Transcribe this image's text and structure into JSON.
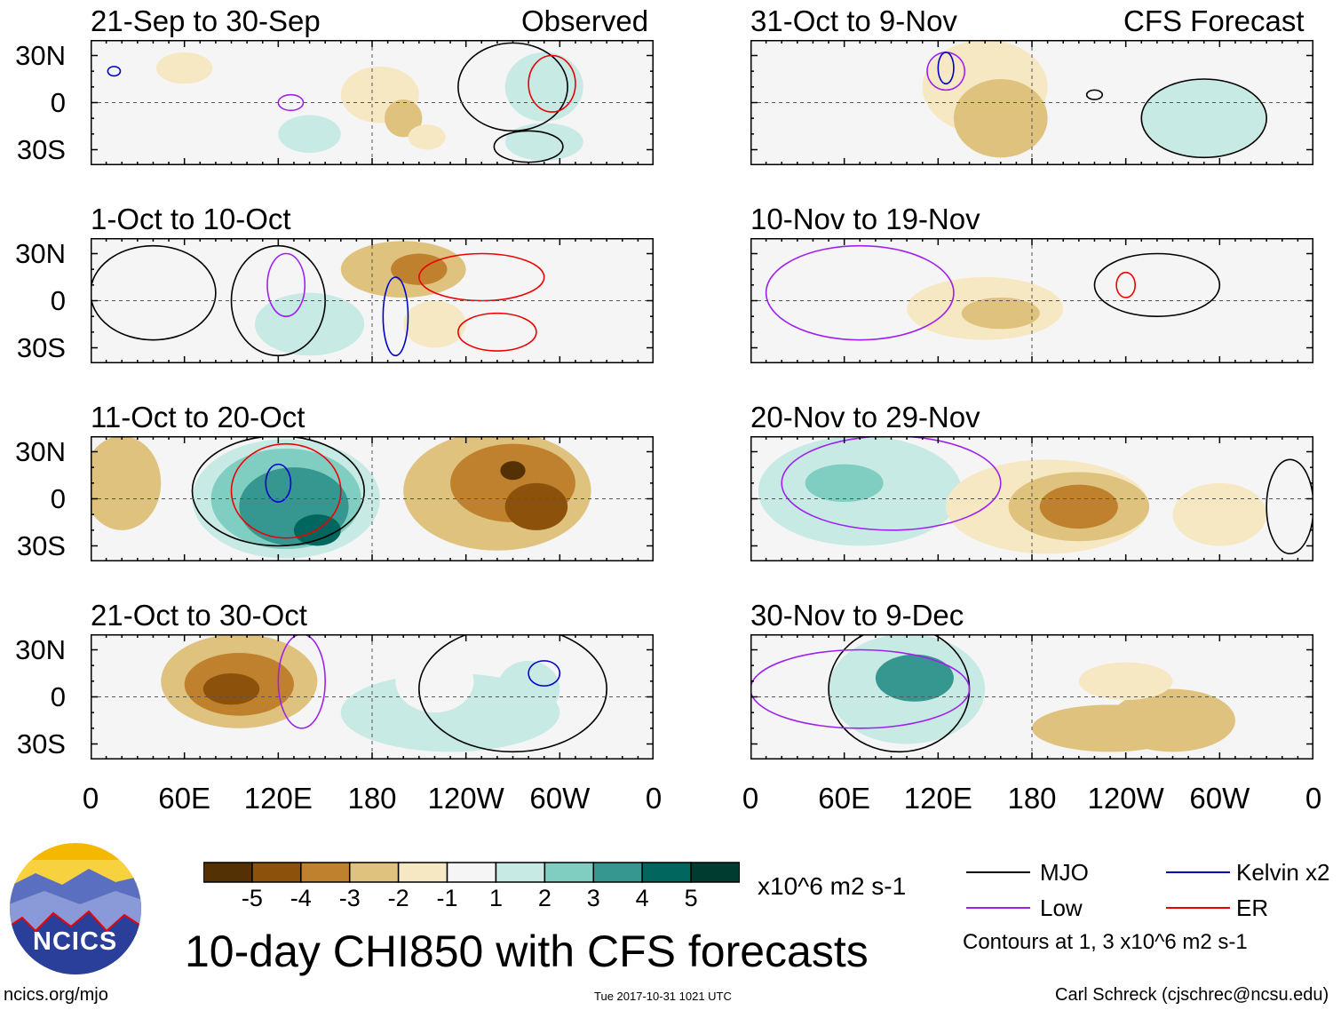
{
  "chart_data": {
    "type": "heatmap",
    "title": "10-day CHI850 with CFS forecasts",
    "units": "x10^6 m2 s-1",
    "section_labels": {
      "observed": "Observed",
      "forecast": "CFS Forecast"
    },
    "lat_ticks": [
      "30N",
      "0",
      "30S"
    ],
    "lon_ticks": [
      "0",
      "60E",
      "120E",
      "180",
      "120W",
      "60W",
      "0"
    ],
    "colorbar": {
      "labels": [
        "-5",
        "-4",
        "-3",
        "-2",
        "-1",
        "1",
        "2",
        "3",
        "4",
        "5"
      ],
      "colors": [
        "#543005",
        "#8c510a",
        "#bf812d",
        "#dfc27d",
        "#f6e8c3",
        "#f5f5f5",
        "#c7eae5",
        "#80cdc1",
        "#35978f",
        "#01665e",
        "#003c30"
      ]
    },
    "panels": [
      {
        "title": "21-Sep to 30-Sep",
        "column": "observed",
        "blobs": [
          [
            60,
            22,
            18,
            10,
            -1.5
          ],
          [
            185,
            5,
            25,
            18,
            -1.5
          ],
          [
            200,
            -10,
            12,
            12,
            -2.5
          ],
          [
            140,
            -20,
            20,
            12,
            1.5
          ],
          [
            290,
            10,
            25,
            22,
            1.5
          ],
          [
            290,
            -25,
            25,
            12,
            1.5
          ],
          [
            215,
            -22,
            12,
            8,
            -1.5
          ]
        ],
        "contours": [
          [
            270,
            10,
            35,
            28,
            "#000"
          ],
          [
            295,
            12,
            15,
            18,
            "#e00"
          ],
          [
            280,
            -28,
            22,
            10,
            "#000"
          ],
          [
            15,
            20,
            4,
            3,
            "#00c"
          ],
          [
            128,
            0,
            8,
            5,
            "#a020f0"
          ]
        ]
      },
      {
        "title": "1-Oct to 10-Oct",
        "column": "observed",
        "blobs": [
          [
            200,
            20,
            40,
            18,
            -2
          ],
          [
            210,
            20,
            18,
            10,
            -3
          ],
          [
            140,
            -15,
            35,
            20,
            1.5
          ],
          [
            20,
            -20,
            15,
            10,
            1
          ],
          [
            290,
            -20,
            25,
            18,
            1
          ],
          [
            220,
            -15,
            20,
            15,
            -1.5
          ]
        ],
        "contours": [
          [
            250,
            15,
            40,
            15,
            "#e00"
          ],
          [
            260,
            -20,
            25,
            12,
            "#e00"
          ],
          [
            195,
            -10,
            8,
            25,
            "#00c"
          ],
          [
            125,
            10,
            12,
            20,
            "#a020f0"
          ],
          [
            40,
            5,
            40,
            30,
            "#000"
          ],
          [
            120,
            0,
            30,
            35,
            "#000"
          ]
        ]
      },
      {
        "title": "11-Oct to 20-Oct",
        "column": "observed",
        "blobs": [
          [
            20,
            10,
            25,
            30,
            -2
          ],
          [
            125,
            0,
            60,
            38,
            2
          ],
          [
            125,
            0,
            48,
            32,
            3
          ],
          [
            130,
            -5,
            35,
            25,
            4
          ],
          [
            145,
            -20,
            15,
            10,
            5
          ],
          [
            260,
            5,
            60,
            38,
            -2
          ],
          [
            270,
            10,
            40,
            25,
            -3
          ],
          [
            285,
            -5,
            20,
            15,
            -4
          ],
          [
            270,
            18,
            8,
            6,
            -5
          ]
        ],
        "contours": [
          [
            120,
            5,
            55,
            35,
            "#000"
          ],
          [
            125,
            5,
            35,
            30,
            "#e00"
          ],
          [
            120,
            10,
            8,
            12,
            "#00c"
          ]
        ]
      },
      {
        "title": "21-Oct to 30-Oct",
        "column": "observed",
        "blobs": [
          [
            95,
            10,
            50,
            30,
            -2
          ],
          [
            95,
            8,
            35,
            20,
            -3
          ],
          [
            90,
            5,
            18,
            10,
            -4
          ],
          [
            230,
            -10,
            70,
            25,
            2
          ],
          [
            220,
            10,
            25,
            20,
            1
          ],
          [
            280,
            5,
            20,
            18,
            1.5
          ]
        ],
        "contours": [
          [
            135,
            10,
            15,
            30,
            "#a020f0"
          ],
          [
            270,
            5,
            60,
            40,
            "#000"
          ],
          [
            290,
            15,
            10,
            8,
            "#00c"
          ]
        ]
      },
      {
        "title": "31-Oct to 9-Nov",
        "column": "forecast",
        "blobs": [
          [
            150,
            10,
            40,
            30,
            -1.5
          ],
          [
            160,
            -10,
            30,
            25,
            -2
          ],
          [
            290,
            -10,
            40,
            25,
            1.5
          ],
          [
            35,
            0,
            30,
            20,
            1
          ],
          [
            320,
            20,
            20,
            10,
            1
          ]
        ],
        "contours": [
          [
            125,
            20,
            12,
            12,
            "#a020f0"
          ],
          [
            125,
            22,
            5,
            10,
            "#00c"
          ],
          [
            290,
            -10,
            40,
            25,
            "#000"
          ],
          [
            220,
            5,
            5,
            3,
            "#000"
          ]
        ]
      },
      {
        "title": "10-Nov to 19-Nov",
        "column": "forecast",
        "blobs": [
          [
            150,
            -5,
            50,
            20,
            -1.5
          ],
          [
            160,
            -8,
            25,
            10,
            -2
          ],
          [
            300,
            20,
            30,
            12,
            1
          ],
          [
            30,
            -20,
            20,
            12,
            1
          ]
        ],
        "contours": [
          [
            70,
            5,
            60,
            30,
            "#a020f0"
          ],
          [
            240,
            10,
            6,
            8,
            "#e00"
          ],
          [
            260,
            10,
            40,
            20,
            "#000"
          ]
        ]
      },
      {
        "title": "20-Nov to 29-Nov",
        "column": "forecast",
        "blobs": [
          [
            70,
            5,
            65,
            35,
            2
          ],
          [
            60,
            10,
            25,
            12,
            3
          ],
          [
            190,
            -5,
            65,
            30,
            -1.5
          ],
          [
            210,
            -5,
            45,
            22,
            -2
          ],
          [
            210,
            -5,
            25,
            14,
            -3.5
          ],
          [
            300,
            -10,
            30,
            20,
            -1.5
          ]
        ],
        "contours": [
          [
            90,
            10,
            70,
            30,
            "#a020f0"
          ],
          [
            345,
            -5,
            15,
            30,
            "#000"
          ]
        ]
      },
      {
        "title": "30-Nov to 9-Dec",
        "column": "forecast",
        "blobs": [
          [
            100,
            5,
            50,
            35,
            2
          ],
          [
            105,
            12,
            25,
            15,
            3.5
          ],
          [
            230,
            -20,
            50,
            15,
            -2
          ],
          [
            270,
            -15,
            40,
            20,
            -2.5
          ],
          [
            240,
            10,
            30,
            12,
            -1.5
          ]
        ],
        "contours": [
          [
            95,
            5,
            45,
            40,
            "#000"
          ],
          [
            70,
            5,
            70,
            25,
            "#a020f0"
          ]
        ]
      }
    ],
    "legend": {
      "mjo": "MJO",
      "low": "Low",
      "kelvin": "Kelvin x2",
      "er": "ER",
      "contours_note": "Contours at 1, 3 x10^6 m2 s-1"
    }
  },
  "footer": {
    "logo": "NCICS",
    "url": "ncics.org/mjo",
    "timestamp": "Tue 2017-10-31 1021 UTC",
    "credit": "Carl Schreck (cjschrec@ncsu.edu)"
  }
}
